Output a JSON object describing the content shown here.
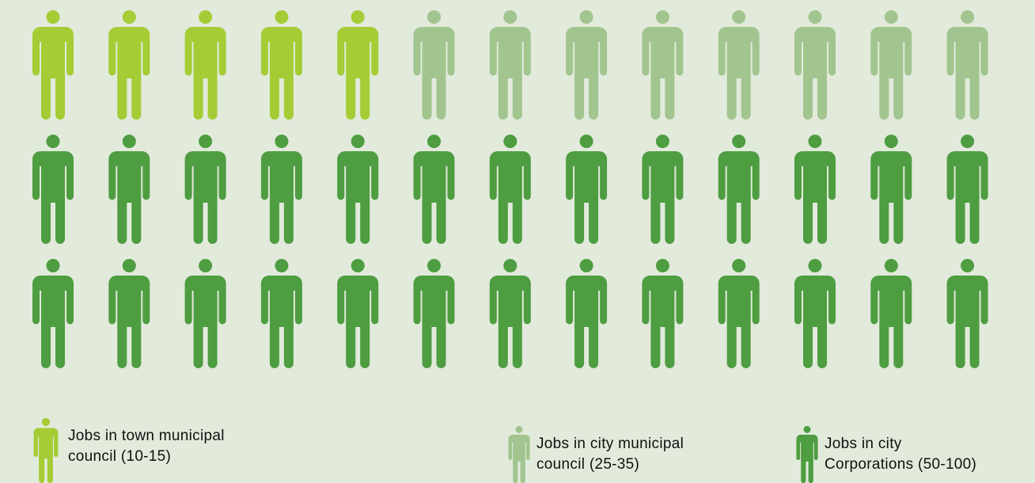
{
  "chart_data": {
    "type": "pictograph",
    "icon": "person-icon",
    "rows": 3,
    "columns": 13,
    "series": [
      {
        "name": "Jobs in town municipal council (10-15)",
        "label": "Jobs in town municipal\ncouncil (10-15)",
        "count": 5,
        "color": "#a5cc35"
      },
      {
        "name": "Jobs in city municipal council (25-35)",
        "label": "Jobs in city municipal\ncouncil (25-35)",
        "count": 8,
        "color": "#a2c58f"
      },
      {
        "name": "Jobs in city Corporations (50-100)",
        "label": "Jobs in city\nCorporations (50-100)",
        "count": 26,
        "color": "#4e9d41"
      }
    ]
  }
}
